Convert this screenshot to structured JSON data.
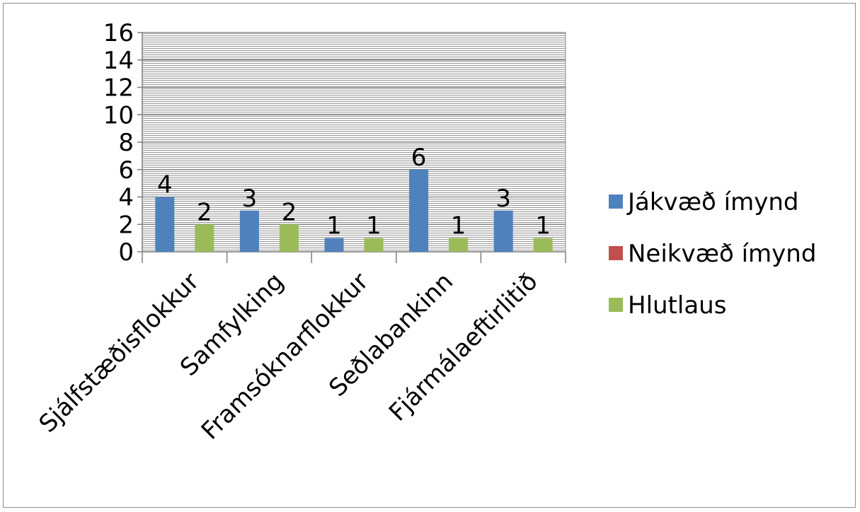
{
  "chart_data": {
    "type": "bar",
    "title": "",
    "xlabel": "",
    "ylabel": "",
    "ylim": [
      0,
      16
    ],
    "yticks": [
      0,
      2,
      4,
      6,
      8,
      10,
      12,
      14,
      16
    ],
    "grid": true,
    "legend_position": "right",
    "categories": [
      "Sjálfstæðisflokkur",
      "Samfylking",
      "Framsóknarflokkur",
      "Seðlabankinn",
      "Fjármálaeftirlitið"
    ],
    "series": [
      {
        "name": "Jákvæð ímynd",
        "color": "#4f81bd",
        "values": [
          4,
          3,
          1,
          6,
          3
        ]
      },
      {
        "name": "Neikvæð ímynd",
        "color": "#c0504d",
        "values": [
          0,
          0,
          0,
          0,
          0
        ]
      },
      {
        "name": "Hlutlaus",
        "color": "#9bbb59",
        "values": [
          2,
          2,
          1,
          1,
          1
        ]
      }
    ],
    "data_labels_series": [
      0,
      2
    ]
  }
}
